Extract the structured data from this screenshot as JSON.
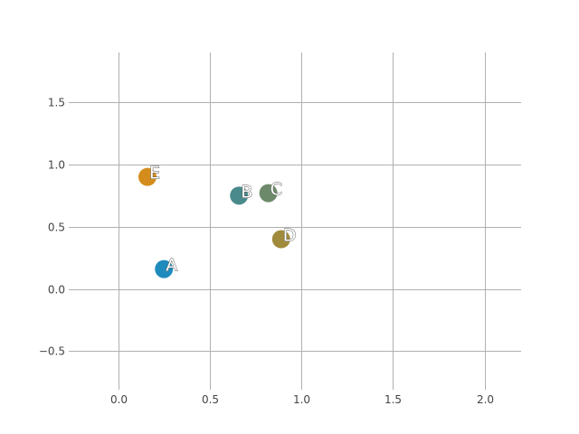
{
  "chart_data": {
    "type": "scatter",
    "title": "",
    "xlabel": "",
    "ylabel": "",
    "xlim": [
      -0.25,
      2.2
    ],
    "ylim": [
      -0.78,
      1.9
    ],
    "xticks": [
      0.0,
      0.5,
      1.0,
      1.5,
      2.0
    ],
    "yticks": [
      -0.5,
      0.0,
      0.5,
      1.0,
      1.5
    ],
    "xtick_labels": [
      "0.0",
      "0.5",
      "1.0",
      "1.5",
      "2.0"
    ],
    "ytick_labels": [
      "−0.5",
      "0.0",
      "0.5",
      "1.0",
      "1.5"
    ],
    "grid": true,
    "points": [
      {
        "label": "A",
        "x": 0.25,
        "y": 0.16,
        "color": "#1f8bbd"
      },
      {
        "label": "B",
        "x": 0.66,
        "y": 0.75,
        "color": "#4a8a8c"
      },
      {
        "label": "C",
        "x": 0.82,
        "y": 0.77,
        "color": "#6c8a6a"
      },
      {
        "label": "D",
        "x": 0.89,
        "y": 0.4,
        "color": "#a08a3c"
      },
      {
        "label": "E",
        "x": 0.16,
        "y": 0.9,
        "color": "#d48d1c"
      }
    ]
  }
}
